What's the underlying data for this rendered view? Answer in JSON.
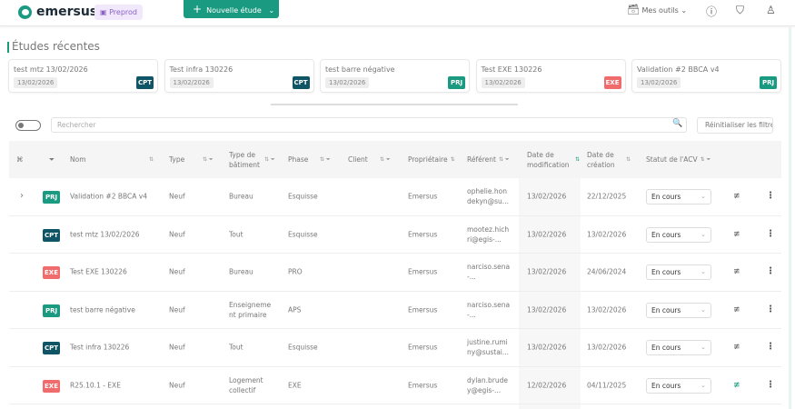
{
  "header": {
    "brand": "emersus",
    "env_badge": "Preprod",
    "new_study": "Nouvelle étude",
    "tools": "Mes outils",
    "icons": [
      "help-icon",
      "shield-icon",
      "user-icon"
    ]
  },
  "recent": {
    "title": "Études récentes",
    "cards": [
      {
        "name": "test mtz 13/02/2026",
        "date": "13/02/2026",
        "badge": "CPT"
      },
      {
        "name": "Test infra 130226",
        "date": "13/02/2026",
        "badge": "CPT"
      },
      {
        "name": "test barre négative",
        "date": "13/02/2026",
        "badge": "PRJ"
      },
      {
        "name": "Test EXE 130226",
        "date": "13/02/2026",
        "badge": "EXE"
      },
      {
        "name": "Validation #2 BBCA v4",
        "date": "13/02/2026",
        "badge": "PRJ"
      }
    ]
  },
  "search": {
    "placeholder": "Rechercher",
    "reset": "Réinitialiser les filtres"
  },
  "colors": {
    "accent": "#1a9a80",
    "CPT": "#0f5566",
    "PRJ": "#1a9a80",
    "EXE": "#f06c6c"
  },
  "table": {
    "headers": {
      "name": "Nom",
      "type": "Type",
      "building": "Type de bâtiment",
      "phase": "Phase",
      "client": "Client",
      "owner": "Propriétaire",
      "referent": "Référent",
      "modified": "Date de modification",
      "created": "Date de création",
      "status": "Statut de l'ACV"
    },
    "rows": [
      {
        "badge": "PRJ",
        "name": "Validation #2 BBCA v4",
        "type": "Neuf",
        "building": "Bureau",
        "phase": "Esquisse",
        "client": "",
        "owner": "Emersus",
        "referent": "ophelie.hon dekyn@su...",
        "modified": "13/02/2026",
        "created": "22/12/2025",
        "status": "En cours",
        "expandable": true
      },
      {
        "badge": "CPT",
        "name": "test mtz 13/02/2026",
        "type": "Neuf",
        "building": "Tout",
        "phase": "Esquisse",
        "client": "",
        "owner": "Emersus",
        "referent": "mootez.hich ri@egis-...",
        "modified": "13/02/2026",
        "created": "13/02/2026",
        "status": "En cours"
      },
      {
        "badge": "EXE",
        "name": "Test EXE 130226",
        "type": "Neuf",
        "building": "Bureau",
        "phase": "PRO",
        "client": "",
        "owner": "Emersus",
        "referent": "narciso.sena -...",
        "modified": "13/02/2026",
        "created": "24/06/2024",
        "status": "En cours"
      },
      {
        "badge": "PRJ",
        "name": "test barre négative",
        "type": "Neuf",
        "building": "Enseigneme nt primaire",
        "phase": "APS",
        "client": "",
        "owner": "Emersus",
        "referent": "narciso.sena -...",
        "modified": "13/02/2026",
        "created": "13/02/2026",
        "status": "En cours"
      },
      {
        "badge": "CPT",
        "name": "Test infra 130226",
        "type": "Neuf",
        "building": "Tout",
        "phase": "Esquisse",
        "client": "",
        "owner": "Emersus",
        "referent": "justine.rumi ny@sustai...",
        "modified": "13/02/2026",
        "created": "13/02/2026",
        "status": "En cours"
      },
      {
        "badge": "EXE",
        "name": "R25.10.1 - EXE",
        "type": "Neuf",
        "building": "Logement collectif",
        "phase": "EXE",
        "client": "",
        "owner": "Emersus",
        "referent": "dylan.brude y@egis-...",
        "modified": "12/02/2026",
        "created": "04/11/2025",
        "status": "En cours",
        "edit_active": true
      }
    ]
  }
}
